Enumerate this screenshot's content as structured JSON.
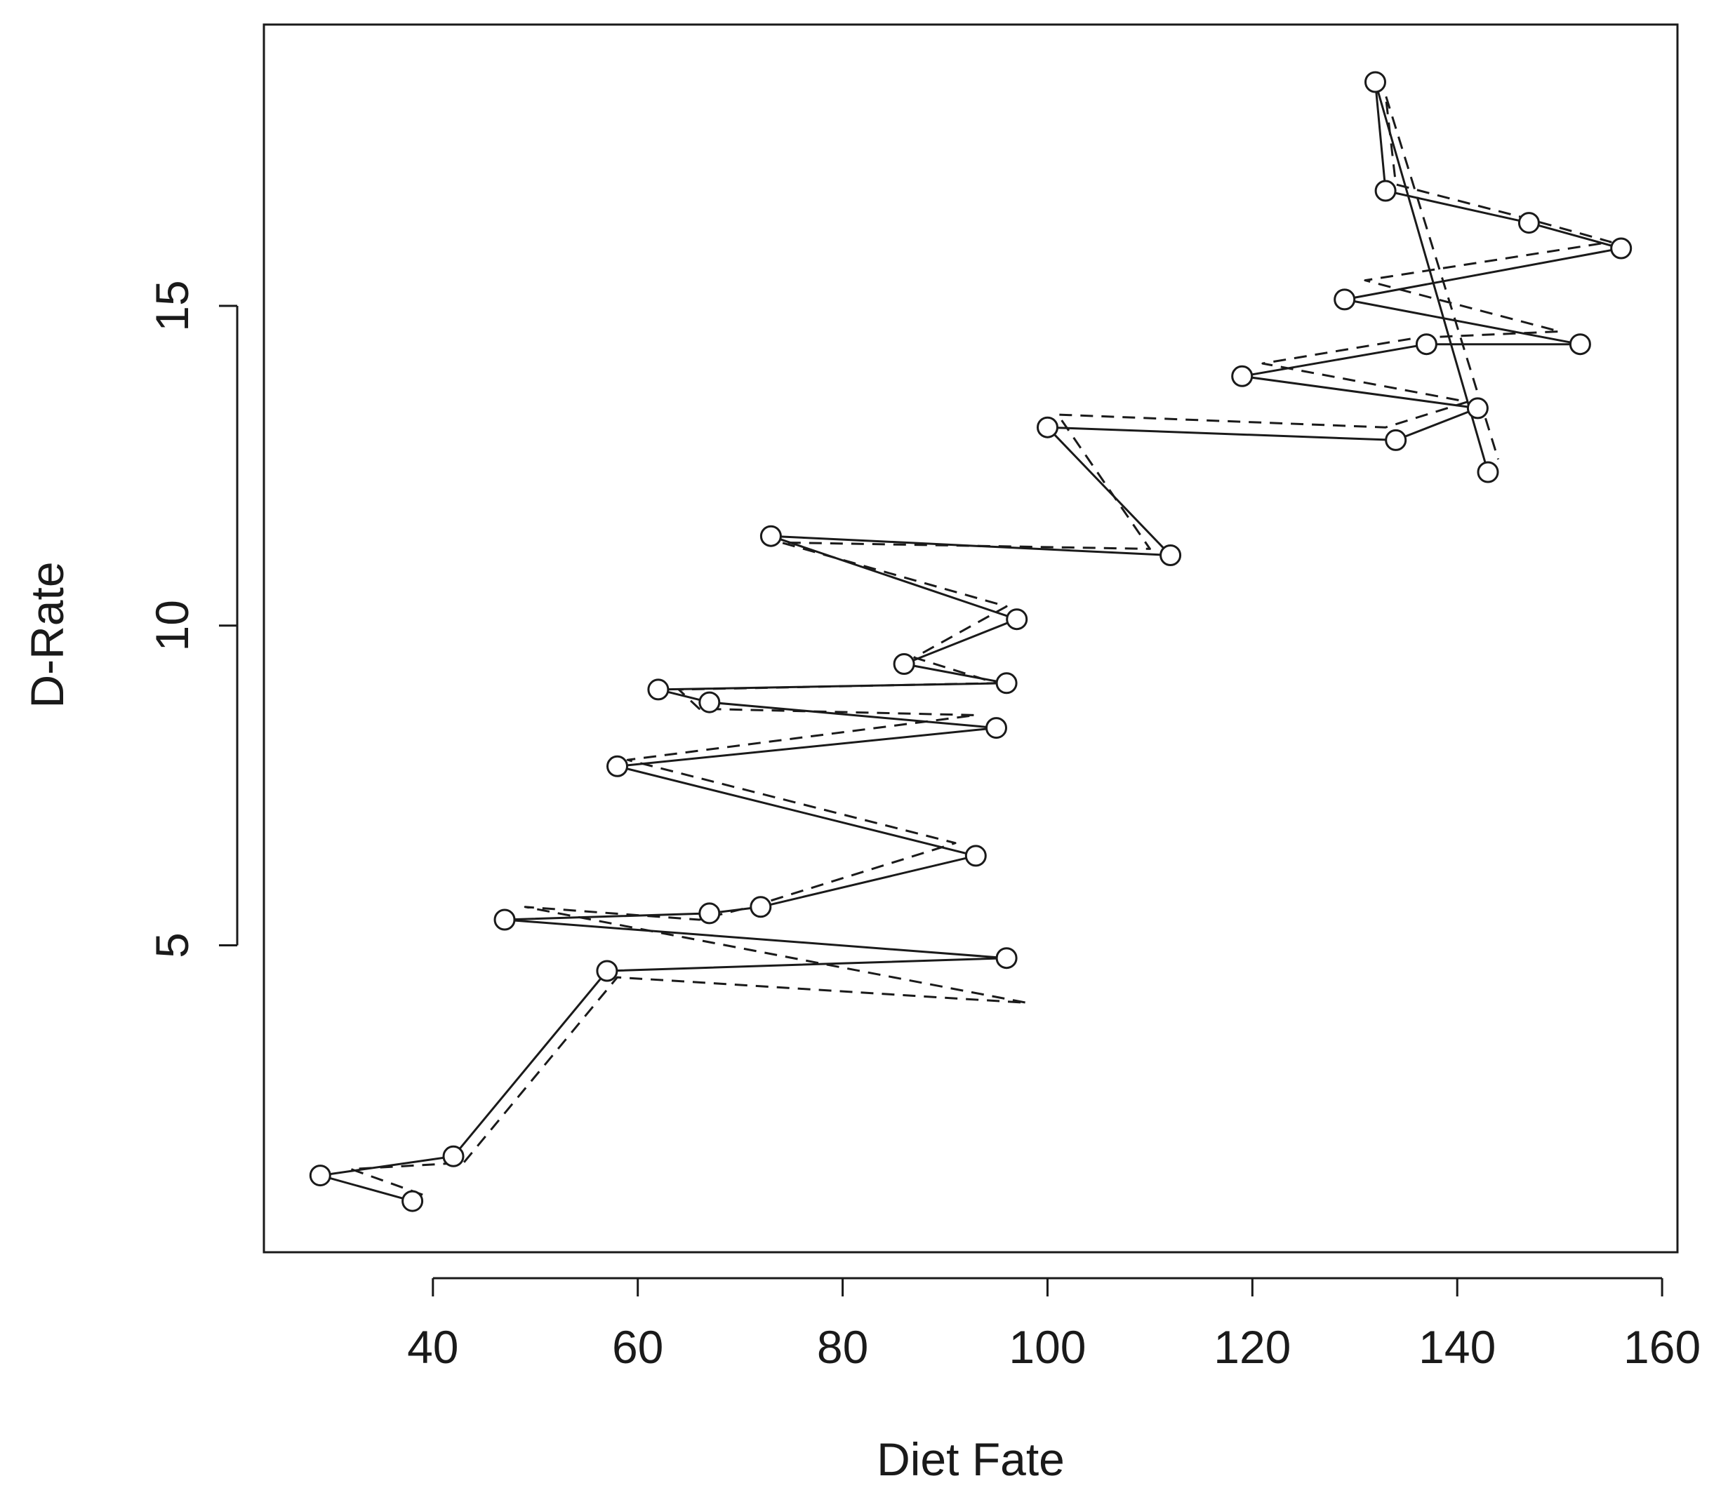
{
  "chart_data": {
    "type": "line",
    "title": "",
    "xlabel": "Diet Fate",
    "ylabel": "D-Rate",
    "xlim": [
      23.5,
      161.5
    ],
    "ylim": [
      0.2,
      19.4
    ],
    "x_ticks": [
      {
        "value": 40,
        "label": "40"
      },
      {
        "value": 60,
        "label": "60"
      },
      {
        "value": 80,
        "label": "80"
      },
      {
        "value": 100,
        "label": "100"
      },
      {
        "value": 120,
        "label": "120"
      },
      {
        "value": 140,
        "label": "140"
      },
      {
        "value": 160,
        "label": "160"
      }
    ],
    "y_ticks": [
      {
        "value": 5,
        "label": "5"
      },
      {
        "value": 10,
        "label": "10"
      },
      {
        "value": 15,
        "label": "15"
      }
    ],
    "grid": false,
    "legend": "none",
    "series": [
      {
        "style": "points-and-solid-line",
        "marker": "open-circle",
        "x": [
          38,
          29,
          42,
          57,
          96,
          47,
          67,
          72,
          93,
          58,
          95,
          67,
          62,
          96,
          86,
          97,
          73,
          112,
          100,
          134,
          142,
          119,
          137,
          152,
          129,
          156,
          147,
          133,
          132,
          143
        ],
        "y": [
          1.0,
          1.4,
          1.7,
          4.6,
          4.8,
          5.4,
          5.5,
          5.6,
          6.4,
          7.8,
          8.4,
          8.8,
          9.0,
          9.1,
          9.4,
          10.1,
          11.4,
          11.1,
          13.1,
          12.9,
          13.4,
          13.9,
          14.4,
          14.4,
          15.1,
          15.9,
          16.3,
          16.8,
          18.5,
          12.4
        ]
      },
      {
        "style": "dashed-line",
        "marker": "none",
        "x": [
          39,
          32,
          43,
          58,
          98,
          49,
          66,
          71,
          91,
          59,
          93,
          66,
          64,
          95,
          87,
          96,
          74,
          110,
          101,
          133,
          141,
          121,
          136,
          150,
          131,
          155,
          146,
          134,
          133,
          144
        ],
        "y": [
          1.1,
          1.5,
          1.6,
          4.5,
          4.1,
          5.6,
          5.4,
          5.6,
          6.6,
          7.9,
          8.6,
          8.7,
          9.0,
          9.1,
          9.5,
          10.3,
          11.3,
          11.2,
          13.3,
          13.1,
          13.5,
          14.1,
          14.5,
          14.6,
          15.4,
          16.0,
          16.4,
          16.9,
          18.3,
          12.6
        ]
      }
    ]
  }
}
